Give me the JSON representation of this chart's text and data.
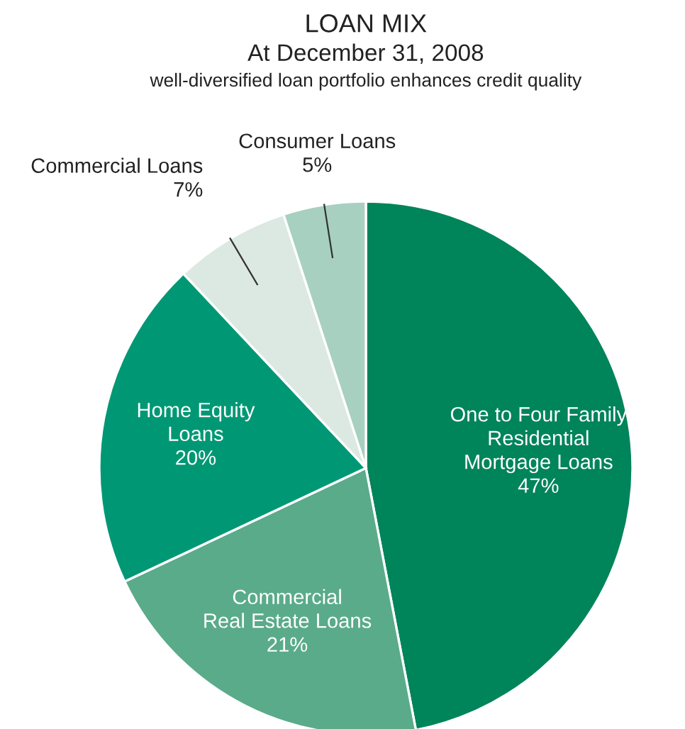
{
  "chart_data": {
    "type": "pie",
    "title": "LOAN MIX",
    "subtitle": "At December 31, 2008",
    "annotations": [
      "well-diversified loan portfolio enhances credit quality"
    ],
    "categories": [
      "One to Four Family\nResidential\nMortgage Loans",
      "Commercial\nReal Estate Loans",
      "Home Equity\nLoans",
      "Commercial Loans",
      "Consumer Loans"
    ],
    "values": [
      47,
      21,
      20,
      7,
      5
    ],
    "value_labels": [
      "47%",
      "21%",
      "20%",
      "7%",
      "5%"
    ],
    "colors": [
      "#00845a",
      "#5aab8a",
      "#009874",
      "#dce9e2",
      "#a7d0c1"
    ]
  }
}
